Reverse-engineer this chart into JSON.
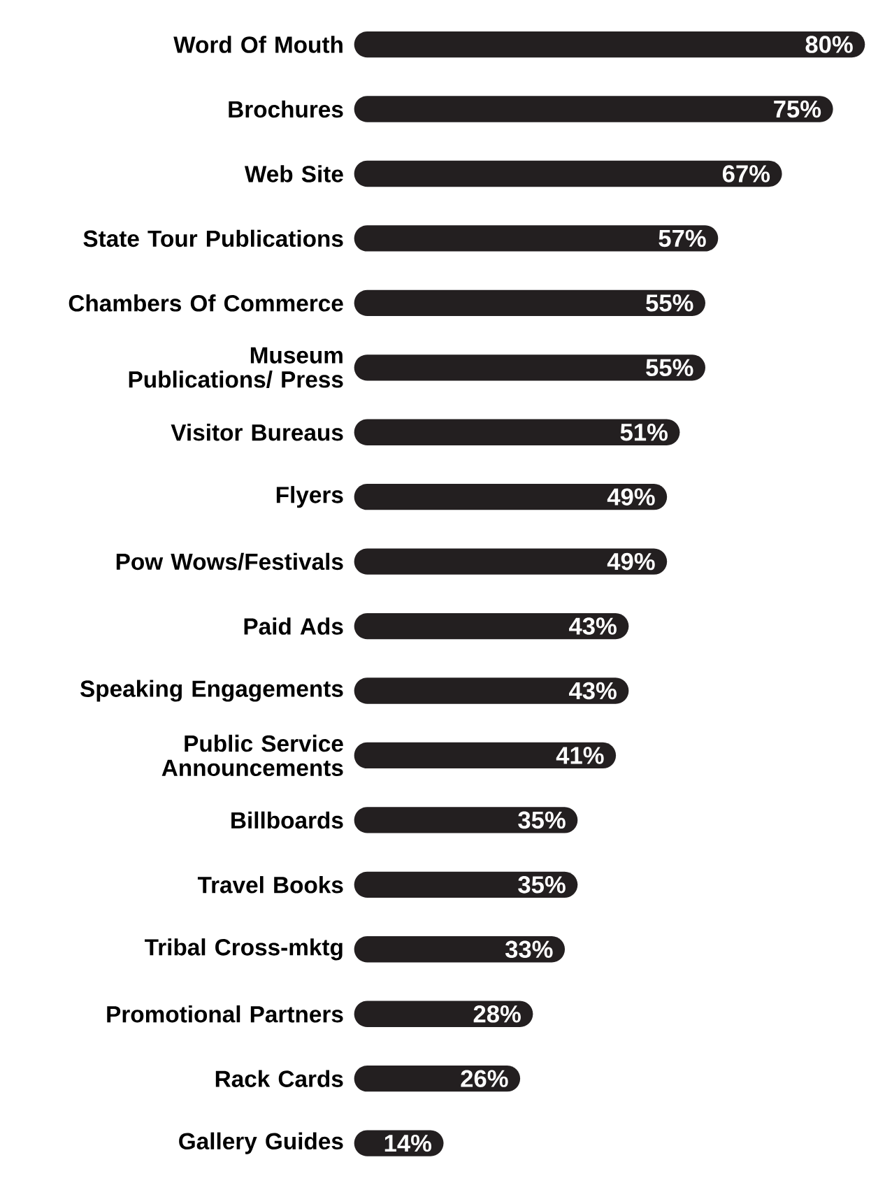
{
  "chart_data": {
    "type": "bar",
    "orientation": "horizontal",
    "categories": [
      "Word Of Mouth",
      "Brochures",
      "Web Site",
      "State Tour Publications",
      "Chambers Of Commerce",
      "Museum Publications/ Press",
      "Visitor Bureaus",
      "Flyers",
      "Pow Wows/Festivals",
      "Paid Ads",
      "Speaking Engagements",
      "Public Service Announcements",
      "Billboards",
      "Travel Books",
      "Tribal Cross-mktg",
      "Promotional Partners",
      "Rack Cards",
      "Gallery Guides"
    ],
    "values": [
      80,
      75,
      67,
      57,
      55,
      55,
      51,
      49,
      49,
      43,
      43,
      41,
      35,
      35,
      33,
      28,
      26,
      14
    ],
    "value_labels": [
      "80%",
      "75%",
      "67%",
      "57%",
      "55%",
      "55%",
      "51%",
      "49%",
      "49%",
      "43%",
      "43%",
      "41%",
      "35%",
      "35%",
      "33%",
      "28%",
      "26%",
      "14%"
    ],
    "color": "#231f20",
    "xlim": [
      0,
      80
    ]
  }
}
